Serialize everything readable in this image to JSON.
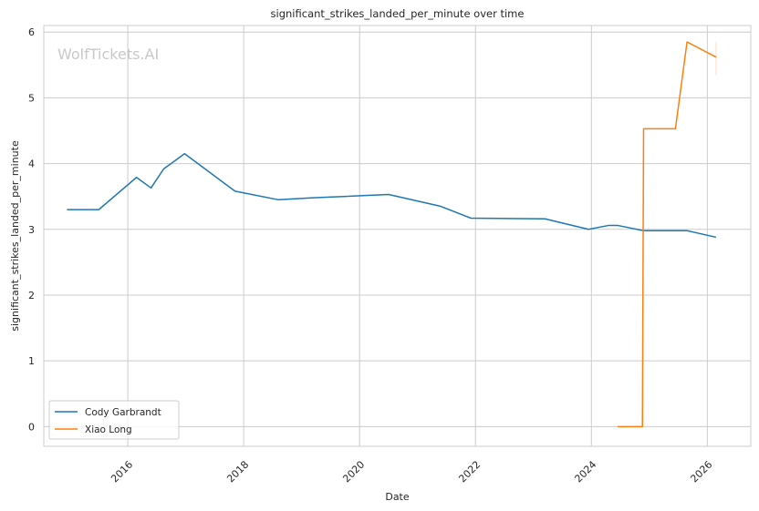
{
  "chart_data": {
    "type": "line",
    "title": "significant_strikes_landed_per_minute over time",
    "xlabel": "Date",
    "ylabel": "significant_strikes_landed_per_minute",
    "watermark": "WolfTickets.AI",
    "xlim": [
      2014.55,
      2026.75
    ],
    "ylim": [
      -0.3,
      6.1
    ],
    "x_ticks": [
      2016,
      2018,
      2020,
      2022,
      2024,
      2026
    ],
    "x_tick_labels": [
      "2016",
      "2018",
      "2020",
      "2022",
      "2024",
      "2026"
    ],
    "y_ticks": [
      0,
      1,
      2,
      3,
      4,
      5,
      6
    ],
    "y_tick_labels": [
      "0",
      "1",
      "2",
      "3",
      "4",
      "5",
      "6"
    ],
    "grid": true,
    "legend_position": "lower-left",
    "series": [
      {
        "name": "Cody Garbrandt",
        "color": "#1f77b4",
        "x": [
          2014.95,
          2015.5,
          2016.15,
          2016.4,
          2016.62,
          2016.98,
          2017.85,
          2018.6,
          2019.2,
          2020.5,
          2021.4,
          2021.92,
          2023.2,
          2023.95,
          2024.3,
          2024.45,
          2024.9,
          2025.65,
          2026.15
        ],
        "y": [
          3.3,
          3.3,
          3.79,
          3.63,
          3.92,
          4.15,
          3.58,
          3.45,
          3.48,
          3.53,
          3.35,
          3.17,
          3.16,
          3.0,
          3.06,
          3.06,
          2.98,
          2.98,
          2.88
        ]
      },
      {
        "name": "Xiao Long",
        "color": "#ff7f0e",
        "x": [
          2024.45,
          2024.88,
          2024.9,
          2025.45,
          2025.65,
          2026.15
        ],
        "y": [
          0.0,
          0.0,
          4.53,
          4.53,
          5.85,
          5.62
        ]
      }
    ]
  }
}
